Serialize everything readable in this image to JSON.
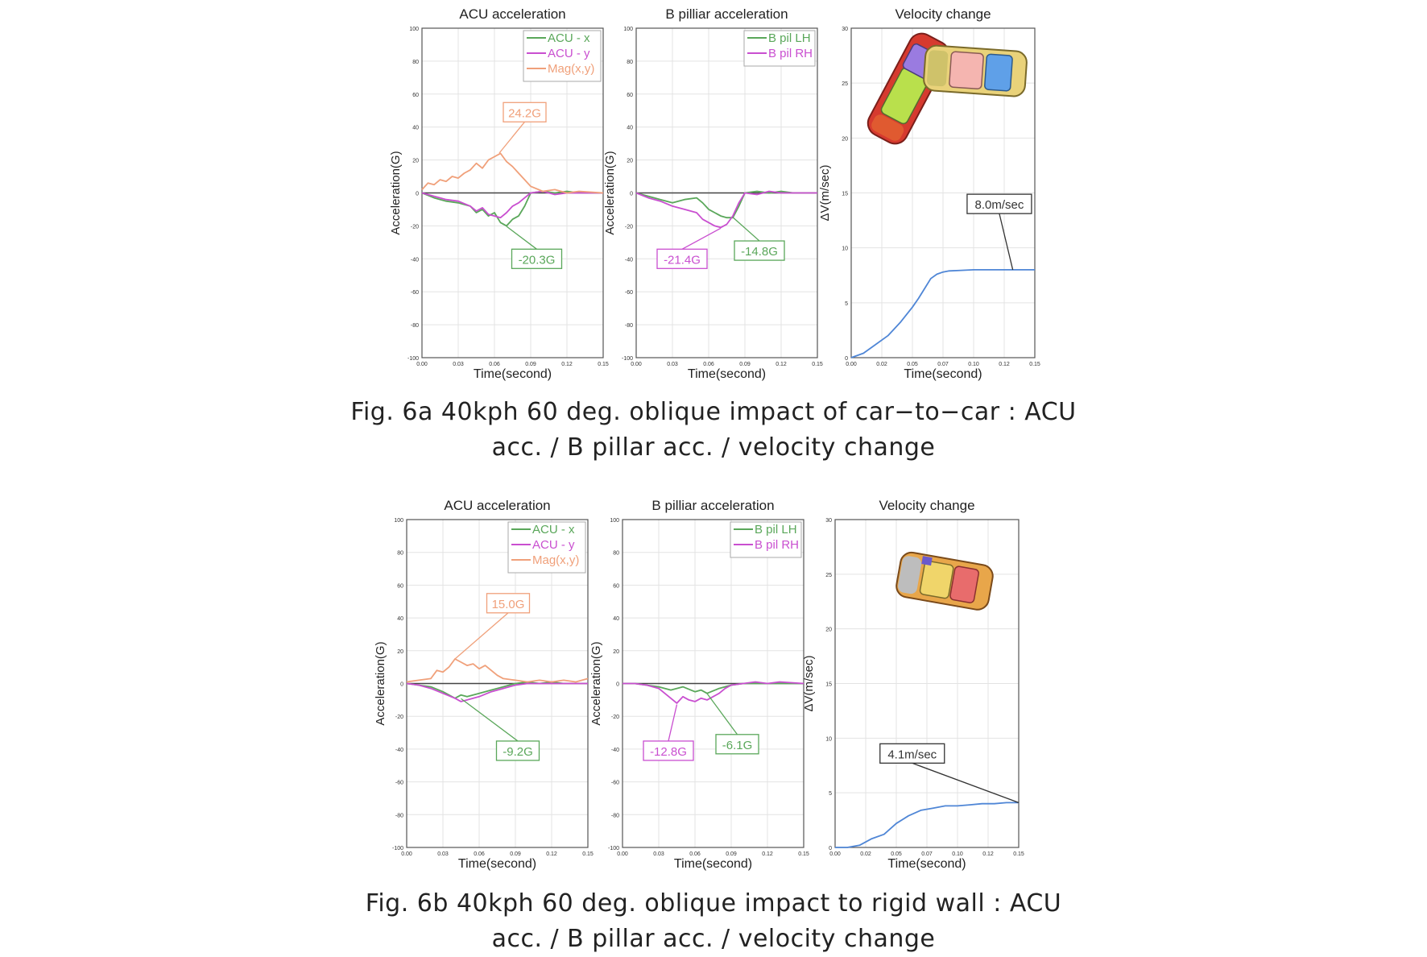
{
  "colors": {
    "acu_x": "#5aa75a",
    "acu_y": "#c94fd0",
    "mag": "#f0a07a",
    "b_lh": "#5aa75a",
    "b_rh": "#c94fd0",
    "velocity": "#4f86d6",
    "grid": "#e3e3e3",
    "zero_line": "#444444"
  },
  "figure_a": {
    "caption_line1": "Fig. 6a 40kph 60 deg. oblique impact of car−to−car : ACU",
    "caption_line2": "acc. / B pillar acc. / velocity change"
  },
  "figure_b": {
    "caption_line1": "Fig. 6b 40kph 60 deg. oblique impact to rigid wall : ACU",
    "caption_line2": "acc. / B pillar acc. / velocity change"
  },
  "chart_data": [
    {
      "id": "a_acu",
      "type": "line",
      "title": "ACU acceleration",
      "xlabel": "Time(second)",
      "ylabel": "Acceleration(G)",
      "xlim": [
        0,
        0.15
      ],
      "ylim": [
        -100,
        100
      ],
      "xticks": [
        "0.00",
        "0.03",
        "0.06",
        "0.09",
        "0.12",
        "0.15"
      ],
      "yticks": [
        "-100",
        "-80",
        "-60",
        "-40",
        "-20",
        "0",
        "20",
        "40",
        "60",
        "80",
        "100"
      ],
      "legend": [
        "ACU - x",
        "ACU - y",
        "Mag(x,y)"
      ],
      "legend_position": "top-right",
      "grid": true,
      "series": [
        {
          "name": "ACU - x",
          "color_key": "acu_x",
          "x": [
            0,
            0.01,
            0.02,
            0.03,
            0.04,
            0.045,
            0.05,
            0.055,
            0.06,
            0.065,
            0.07,
            0.075,
            0.08,
            0.085,
            0.09,
            0.1,
            0.11,
            0.12,
            0.13,
            0.15
          ],
          "y": [
            0,
            -3,
            -5,
            -6,
            -8,
            -12,
            -10,
            -14,
            -12,
            -18,
            -20,
            -16,
            -14,
            -8,
            0,
            1,
            0,
            1,
            0,
            0
          ]
        },
        {
          "name": "ACU - y",
          "color_key": "acu_y",
          "x": [
            0,
            0.01,
            0.02,
            0.03,
            0.04,
            0.045,
            0.05,
            0.055,
            0.06,
            0.065,
            0.07,
            0.075,
            0.08,
            0.085,
            0.09,
            0.1,
            0.11,
            0.12,
            0.13,
            0.15
          ],
          "y": [
            0,
            -2,
            -4,
            -5,
            -8,
            -11,
            -9,
            -13,
            -14,
            -15,
            -12,
            -8,
            -6,
            -3,
            0,
            1,
            -1,
            0,
            0,
            0
          ]
        },
        {
          "name": "Mag(x,y)",
          "color_key": "mag",
          "x": [
            0,
            0.005,
            0.01,
            0.015,
            0.02,
            0.025,
            0.03,
            0.035,
            0.04,
            0.045,
            0.05,
            0.055,
            0.06,
            0.065,
            0.07,
            0.075,
            0.08,
            0.085,
            0.09,
            0.1,
            0.11,
            0.12,
            0.13,
            0.15
          ],
          "y": [
            2,
            6,
            5,
            8,
            7,
            10,
            9,
            12,
            14,
            18,
            15,
            20,
            22,
            24,
            19,
            16,
            12,
            8,
            4,
            1,
            2,
            0,
            1,
            0
          ]
        }
      ],
      "annotations": [
        {
          "text": "24.2G",
          "color_key": "mag",
          "x": 0.064,
          "y": 24.2,
          "label_x": 0.085,
          "label_y": 49
        },
        {
          "text": "-20.3G",
          "color_key": "acu_x",
          "x": 0.07,
          "y": -20.3,
          "label_x": 0.095,
          "label_y": -40
        }
      ]
    },
    {
      "id": "a_bp",
      "type": "line",
      "title": "B pilliar acceleration",
      "xlabel": "Time(second)",
      "ylabel": "Acceleration(G)",
      "xlim": [
        0,
        0.15
      ],
      "ylim": [
        -100,
        100
      ],
      "xticks": [
        "0.00",
        "0.03",
        "0.06",
        "0.09",
        "0.12",
        "0.15"
      ],
      "yticks": [
        "-100",
        "-80",
        "-60",
        "-40",
        "-20",
        "0",
        "20",
        "40",
        "60",
        "80",
        "100"
      ],
      "legend": [
        "B pil LH",
        "B pil RH"
      ],
      "legend_position": "top-right",
      "grid": true,
      "series": [
        {
          "name": "B pil LH",
          "color_key": "b_lh",
          "x": [
            0,
            0.01,
            0.02,
            0.03,
            0.04,
            0.05,
            0.055,
            0.06,
            0.065,
            0.07,
            0.075,
            0.08,
            0.085,
            0.09,
            0.1,
            0.11,
            0.12,
            0.13,
            0.15
          ],
          "y": [
            0,
            -2,
            -4,
            -6,
            -4,
            -3,
            -6,
            -10,
            -12,
            -14,
            -15,
            -15,
            -8,
            0,
            1,
            0,
            1,
            0,
            0
          ]
        },
        {
          "name": "B pil RH",
          "color_key": "b_rh",
          "x": [
            0,
            0.01,
            0.02,
            0.03,
            0.04,
            0.05,
            0.055,
            0.06,
            0.065,
            0.07,
            0.075,
            0.08,
            0.085,
            0.09,
            0.1,
            0.11,
            0.12,
            0.13,
            0.15
          ],
          "y": [
            0,
            -3,
            -5,
            -8,
            -10,
            -12,
            -16,
            -18,
            -20,
            -21,
            -19,
            -14,
            -6,
            0,
            -1,
            1,
            0,
            0,
            0
          ]
        }
      ],
      "annotations": [
        {
          "text": "-21.4G",
          "color_key": "b_rh",
          "x": 0.07,
          "y": -21.4,
          "label_x": 0.038,
          "label_y": -40
        },
        {
          "text": "-14.8G",
          "color_key": "b_lh",
          "x": 0.08,
          "y": -14.8,
          "label_x": 0.102,
          "label_y": -35
        }
      ]
    },
    {
      "id": "a_vel",
      "type": "line",
      "title": "Velocity change",
      "xlabel": "Time(second)",
      "ylabel": "ΔV(m/sec)",
      "xlim": [
        0,
        0.15
      ],
      "ylim": [
        0,
        30
      ],
      "xticks": [
        "0.00",
        "0.02",
        "0.05",
        "0.07",
        "0.10",
        "0.12",
        "0.15"
      ],
      "yticks": [
        "0",
        "5",
        "10",
        "15",
        "20",
        "25",
        "30"
      ],
      "grid": true,
      "series": [
        {
          "name": "",
          "color_key": "velocity",
          "x": [
            0,
            0.01,
            0.02,
            0.03,
            0.04,
            0.05,
            0.055,
            0.06,
            0.065,
            0.07,
            0.075,
            0.08,
            0.09,
            0.1,
            0.11,
            0.12,
            0.13,
            0.15
          ],
          "y": [
            0,
            0.4,
            1.2,
            2,
            3.2,
            4.6,
            5.4,
            6.3,
            7.2,
            7.6,
            7.8,
            7.9,
            7.95,
            8,
            8,
            8,
            8,
            8
          ]
        }
      ],
      "annotations": [
        {
          "text": "8.0m/sec",
          "color_key": "velocity",
          "x": 0.132,
          "y": 8,
          "label_x": 0.121,
          "label_y": 14
        }
      ]
    },
    {
      "id": "b_acu",
      "type": "line",
      "title": "ACU acceleration",
      "xlabel": "Time(second)",
      "ylabel": "Acceleration(G)",
      "xlim": [
        0,
        0.15
      ],
      "ylim": [
        -100,
        100
      ],
      "xticks": [
        "0.00",
        "0.03",
        "0.06",
        "0.09",
        "0.12",
        "0.15"
      ],
      "yticks": [
        "-100",
        "-80",
        "-60",
        "-40",
        "-20",
        "0",
        "20",
        "40",
        "60",
        "80",
        "100"
      ],
      "legend": [
        "ACU - x",
        "ACU - y",
        "Mag(x,y)"
      ],
      "legend_position": "top-right",
      "grid": true,
      "series": [
        {
          "name": "ACU - x",
          "color_key": "acu_x",
          "x": [
            0,
            0.01,
            0.02,
            0.03,
            0.04,
            0.045,
            0.05,
            0.06,
            0.07,
            0.08,
            0.09,
            0.1,
            0.11,
            0.12,
            0.13,
            0.15
          ],
          "y": [
            0,
            -1,
            -2,
            -5,
            -9,
            -7,
            -8,
            -6,
            -4,
            -2,
            0,
            1,
            0,
            1,
            0,
            0
          ]
        },
        {
          "name": "ACU - y",
          "color_key": "acu_y",
          "x": [
            0,
            0.01,
            0.02,
            0.03,
            0.04,
            0.045,
            0.05,
            0.06,
            0.07,
            0.08,
            0.09,
            0.1,
            0.11,
            0.12,
            0.13,
            0.15
          ],
          "y": [
            0,
            -1,
            -3,
            -6,
            -9,
            -11,
            -10,
            -8,
            -5,
            -3,
            -1,
            0,
            0,
            0,
            0,
            0
          ]
        },
        {
          "name": "Mag(x,y)",
          "color_key": "mag",
          "x": [
            0,
            0.01,
            0.02,
            0.025,
            0.03,
            0.035,
            0.04,
            0.045,
            0.05,
            0.055,
            0.06,
            0.065,
            0.07,
            0.075,
            0.08,
            0.09,
            0.1,
            0.11,
            0.12,
            0.13,
            0.14,
            0.15
          ],
          "y": [
            1,
            2,
            3,
            8,
            7,
            10,
            15,
            13,
            11,
            12,
            9,
            11,
            8,
            5,
            3,
            2,
            1,
            2,
            1,
            2,
            1,
            3
          ]
        }
      ],
      "annotations": [
        {
          "text": "15.0G",
          "color_key": "mag",
          "x": 0.04,
          "y": 15,
          "label_x": 0.084,
          "label_y": 49
        },
        {
          "text": "-9.2G",
          "color_key": "acu_x",
          "x": 0.045,
          "y": -9.2,
          "label_x": 0.092,
          "label_y": -41
        }
      ]
    },
    {
      "id": "b_bp",
      "type": "line",
      "title": "B pilliar acceleration",
      "xlabel": "Time(second)",
      "ylabel": "Acceleration(G)",
      "xlim": [
        0,
        0.15
      ],
      "ylim": [
        -100,
        100
      ],
      "xticks": [
        "0.00",
        "0.03",
        "0.06",
        "0.09",
        "0.12",
        "0.15"
      ],
      "yticks": [
        "-100",
        "-80",
        "-60",
        "-40",
        "-20",
        "0",
        "20",
        "40",
        "60",
        "80",
        "100"
      ],
      "legend": [
        "B pil LH",
        "B pil RH"
      ],
      "legend_position": "top-right",
      "grid": true,
      "series": [
        {
          "name": "B pil LH",
          "color_key": "b_lh",
          "x": [
            0,
            0.01,
            0.02,
            0.03,
            0.04,
            0.05,
            0.06,
            0.065,
            0.07,
            0.08,
            0.09,
            0.1,
            0.11,
            0.12,
            0.13,
            0.15
          ],
          "y": [
            0,
            0,
            -1,
            -2,
            -4,
            -2,
            -5,
            -4,
            -6,
            -3,
            -1,
            0,
            0,
            0,
            0,
            0
          ]
        },
        {
          "name": "B pil RH",
          "color_key": "b_rh",
          "x": [
            0,
            0.01,
            0.02,
            0.03,
            0.035,
            0.04,
            0.045,
            0.05,
            0.055,
            0.06,
            0.065,
            0.07,
            0.075,
            0.08,
            0.085,
            0.09,
            0.1,
            0.11,
            0.12,
            0.13,
            0.15
          ],
          "y": [
            0,
            0,
            -1,
            -3,
            -6,
            -9,
            -12,
            -8,
            -10,
            -11,
            -9,
            -10,
            -8,
            -6,
            -3,
            -1,
            0,
            1,
            0,
            1,
            0
          ]
        }
      ],
      "annotations": [
        {
          "text": "-12.8G",
          "color_key": "b_rh",
          "x": 0.045,
          "y": -12.8,
          "label_x": 0.038,
          "label_y": -41
        },
        {
          "text": "-6.1G",
          "color_key": "b_lh",
          "x": 0.07,
          "y": -6.1,
          "label_x": 0.095,
          "label_y": -37
        }
      ]
    },
    {
      "id": "b_vel",
      "type": "line",
      "title": "Velocity change",
      "xlabel": "Time(second)",
      "ylabel": "ΔV(m/sec)",
      "xlim": [
        0,
        0.15
      ],
      "ylim": [
        0,
        30
      ],
      "xticks": [
        "0.00",
        "0.02",
        "0.05",
        "0.07",
        "0.10",
        "0.12",
        "0.15"
      ],
      "yticks": [
        "0",
        "5",
        "10",
        "15",
        "20",
        "25",
        "30"
      ],
      "grid": true,
      "series": [
        {
          "name": "",
          "color_key": "velocity",
          "x": [
            0,
            0.01,
            0.02,
            0.03,
            0.04,
            0.05,
            0.06,
            0.07,
            0.08,
            0.09,
            0.1,
            0.11,
            0.12,
            0.13,
            0.14,
            0.15
          ],
          "y": [
            0,
            0,
            0.2,
            0.8,
            1.2,
            2.2,
            2.9,
            3.4,
            3.6,
            3.8,
            3.8,
            3.9,
            4,
            4,
            4.1,
            4.1
          ]
        }
      ],
      "annotations": [
        {
          "text": "4.1m/sec",
          "color_key": "velocity",
          "x": 0.15,
          "y": 4.1,
          "label_x": 0.063,
          "label_y": 8.6
        }
      ]
    }
  ]
}
